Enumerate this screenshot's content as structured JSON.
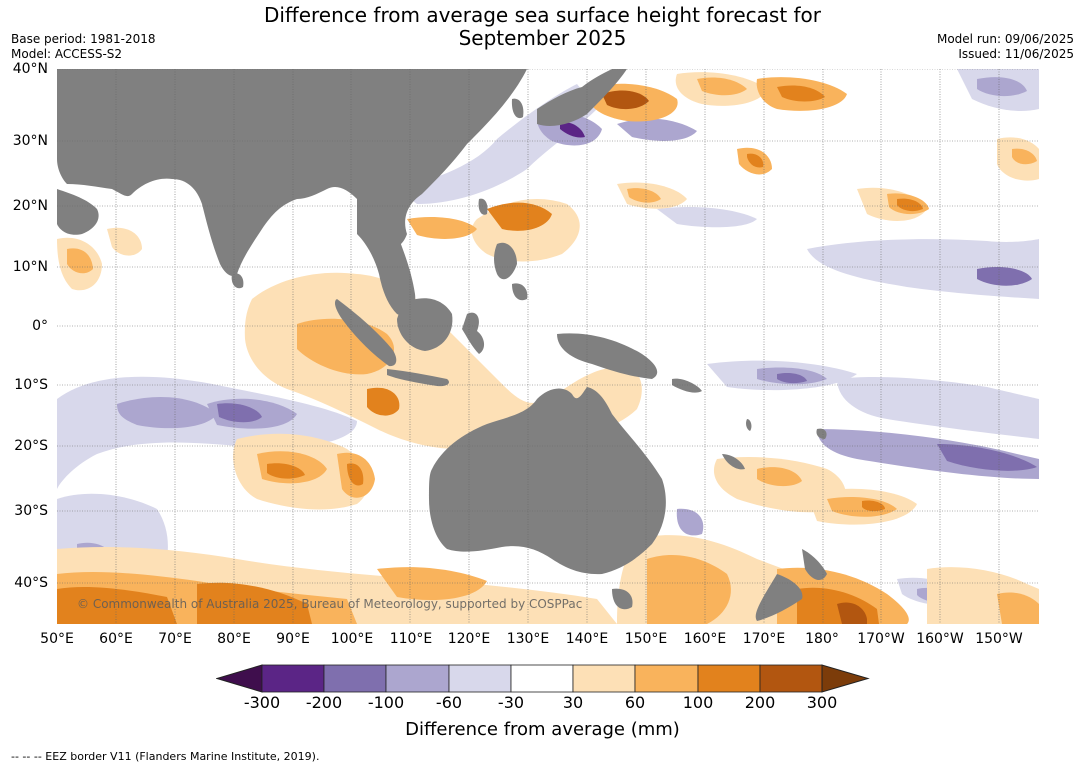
{
  "title": [
    "Difference from average sea surface height forecast for",
    "September 2025"
  ],
  "meta_left": [
    "Base period: 1981-2018",
    "Model: ACCESS-S2"
  ],
  "meta_right": [
    "Model run: 09/06/2025",
    "Issued: 11/06/2025"
  ],
  "lat_labels": [
    "40°N",
    "30°N",
    "20°N",
    "10°N",
    "0°",
    "10°S",
    "20°S",
    "30°S",
    "40°S"
  ],
  "lon_labels": [
    "50°E",
    "60°E",
    "70°E",
    "80°E",
    "90°E",
    "100°E",
    "110°E",
    "120°E",
    "130°E",
    "140°E",
    "150°E",
    "160°E",
    "170°E",
    "180°",
    "170°W",
    "160°W",
    "150°W"
  ],
  "copyright": "© Commonwealth of Australia 2025, Bureau of Meteorology, supported by COSPPac",
  "colorbar": {
    "ticks": [
      "-300",
      "-200",
      "-100",
      "-60",
      "-30",
      "30",
      "60",
      "100",
      "200",
      "300"
    ],
    "colors": [
      "#3f0e4d",
      "#5b2586",
      "#7f6fae",
      "#aca6cf",
      "#d8d8eb",
      "#ffffff",
      "#fde0b6",
      "#f9b35c",
      "#e2821d",
      "#b25610",
      "#7c3c0a"
    ],
    "label": "Difference from average (mm)"
  },
  "colors": {
    "land": "#808080",
    "grid": "#555555"
  },
  "footnote": "--  --  -- EEZ border V11 (Flanders Marine Institute, 2019)."
}
